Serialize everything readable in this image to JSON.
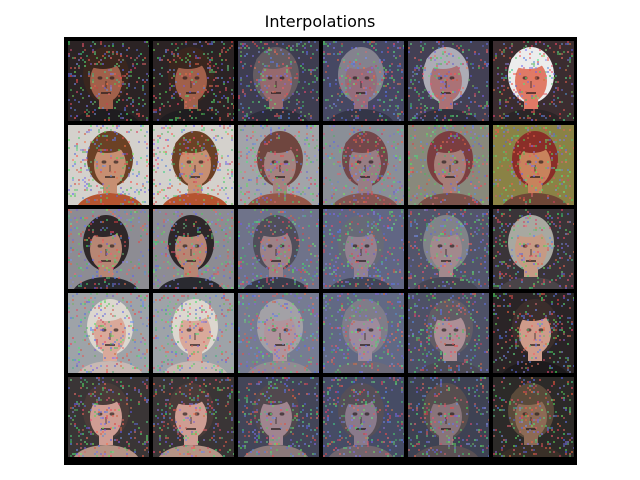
{
  "title": "Interpolations",
  "grid": {
    "rows": 5,
    "cols": 6,
    "rows_data": [
      {
        "bg": "#2b2324",
        "skin": "#a1604a",
        "hair": "#3a261e",
        "shirt": "#1f1d20",
        "end_bg": "#3b2d30",
        "end_skin": "#e07a66",
        "end_hair": "#ececec",
        "end_shirt": "#2b2527"
      },
      {
        "bg": "#d4d1cc",
        "skin": "#c78f72",
        "hair": "#6b4125",
        "shirt": "#b5542f",
        "end_bg": "#8a8245",
        "end_skin": "#c8835c",
        "end_hair": "#8a2e28",
        "end_shirt": "#6e4636"
      },
      {
        "bg": "#8d8c93",
        "skin": "#b78674",
        "hair": "#2e2729",
        "shirt": "#2a2a30",
        "end_bg": "#3a3438",
        "end_skin": "#c69a84",
        "end_hair": "#a8a8a0",
        "end_shirt": "#4a4448"
      },
      {
        "bg": "#9ea3a8",
        "skin": "#d9a99a",
        "hair": "#dcd7cf",
        "shirt": "#c9b8b3",
        "end_bg": "#2a2426",
        "end_skin": "#cf9b8a",
        "end_hair": "#3b2e2c",
        "end_shirt": "#1d1a1c"
      },
      {
        "bg": "#3a3536",
        "skin": "#cf9d93",
        "hair": "#4a3b39",
        "shirt": "#b59486",
        "end_bg": "#2c2a28",
        "end_skin": "#8d6a55",
        "end_hair": "#5a4a3a",
        "end_shirt": "#3a3028"
      }
    ],
    "mid_tint": "#5d6ea8"
  }
}
